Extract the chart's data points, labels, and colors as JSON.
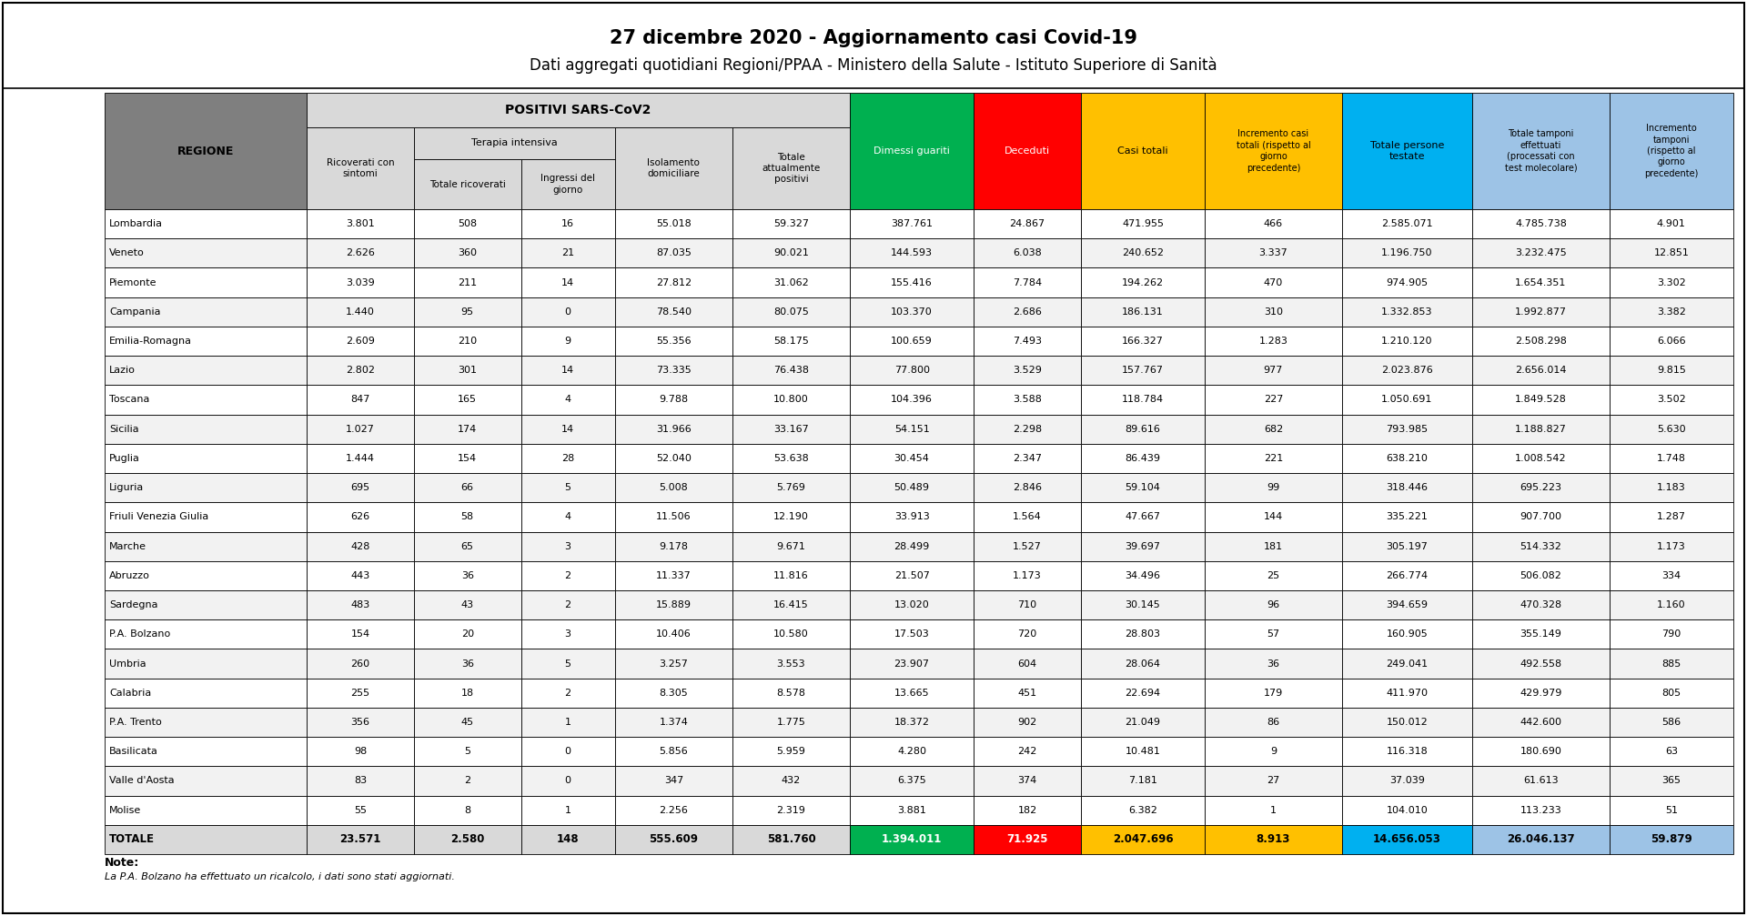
{
  "title1": "27 dicembre 2020 - Aggiornamento casi Covid-19",
  "title2": "Dati aggregati quotidiani Regioni/PPAA - Ministero della Salute - Istituto Superiore di Sanità",
  "note1": "Note:",
  "note2": "La P.A. Bolzano ha effettuato un ricalcolo, i dati sono stati aggiornati.",
  "regions": [
    "Lombardia",
    "Veneto",
    "Piemonte",
    "Campania",
    "Emilia-Romagna",
    "Lazio",
    "Toscana",
    "Sicilia",
    "Puglia",
    "Liguria",
    "Friuli Venezia Giulia",
    "Marche",
    "Abruzzo",
    "Sardegna",
    "P.A. Bolzano",
    "Umbria",
    "Calabria",
    "P.A. Trento",
    "Basilicata",
    "Valle d'Aosta",
    "Molise",
    "TOTALE"
  ],
  "col_ricoverati_sintomi": [
    "3.801",
    "2.626",
    "3.039",
    "1.440",
    "2.609",
    "2.802",
    "847",
    "1.027",
    "1.444",
    "695",
    "626",
    "428",
    "443",
    "483",
    "154",
    "260",
    "255",
    "356",
    "98",
    "83",
    "55",
    "23.571"
  ],
  "col_totale_ricoverati": [
    "508",
    "360",
    "211",
    "95",
    "210",
    "301",
    "165",
    "174",
    "154",
    "66",
    "58",
    "65",
    "36",
    "43",
    "20",
    "36",
    "18",
    "45",
    "5",
    "2",
    "8",
    "2.580"
  ],
  "col_ingressi_giorno": [
    "16",
    "21",
    "14",
    "0",
    "9",
    "14",
    "4",
    "14",
    "28",
    "5",
    "4",
    "3",
    "2",
    "2",
    "3",
    "5",
    "2",
    "1",
    "0",
    "0",
    "1",
    "148"
  ],
  "col_isolamento": [
    "55.018",
    "87.035",
    "27.812",
    "78.540",
    "55.356",
    "73.335",
    "9.788",
    "31.966",
    "52.040",
    "5.008",
    "11.506",
    "9.178",
    "11.337",
    "15.889",
    "10.406",
    "3.257",
    "8.305",
    "1.374",
    "5.856",
    "347",
    "2.256",
    "555.609"
  ],
  "col_totale_positivi": [
    "59.327",
    "90.021",
    "31.062",
    "80.075",
    "58.175",
    "76.438",
    "10.800",
    "33.167",
    "53.638",
    "5.769",
    "12.190",
    "9.671",
    "11.816",
    "16.415",
    "10.580",
    "3.553",
    "8.578",
    "1.775",
    "5.959",
    "432",
    "2.319",
    "581.760"
  ],
  "col_dimessi_guariti": [
    "387.761",
    "144.593",
    "155.416",
    "103.370",
    "100.659",
    "77.800",
    "104.396",
    "54.151",
    "30.454",
    "50.489",
    "33.913",
    "28.499",
    "21.507",
    "13.020",
    "17.503",
    "23.907",
    "13.665",
    "18.372",
    "4.280",
    "6.375",
    "3.881",
    "1.394.011"
  ],
  "col_deceduti": [
    "24.867",
    "6.038",
    "7.784",
    "2.686",
    "7.493",
    "3.529",
    "3.588",
    "2.298",
    "2.347",
    "2.846",
    "1.564",
    "1.527",
    "1.173",
    "710",
    "720",
    "604",
    "451",
    "902",
    "242",
    "374",
    "182",
    "71.925"
  ],
  "col_casi_totali": [
    "471.955",
    "240.652",
    "194.262",
    "186.131",
    "166.327",
    "157.767",
    "118.784",
    "89.616",
    "86.439",
    "59.104",
    "47.667",
    "39.697",
    "34.496",
    "30.145",
    "28.803",
    "28.064",
    "22.694",
    "21.049",
    "10.481",
    "7.181",
    "6.382",
    "2.047.696"
  ],
  "col_incremento_casi": [
    "466",
    "3.337",
    "470",
    "310",
    "1.283",
    "977",
    "227",
    "682",
    "221",
    "99",
    "144",
    "181",
    "25",
    "96",
    "57",
    "36",
    "179",
    "86",
    "9",
    "27",
    "1",
    "8.913"
  ],
  "col_totale_persone": [
    "2.585.071",
    "1.196.750",
    "974.905",
    "1.332.853",
    "1.210.120",
    "2.023.876",
    "1.050.691",
    "793.985",
    "638.210",
    "318.446",
    "335.221",
    "305.197",
    "266.774",
    "394.659",
    "160.905",
    "249.041",
    "411.970",
    "150.012",
    "116.318",
    "37.039",
    "104.010",
    "14.656.053"
  ],
  "col_tamponi": [
    "4.785.738",
    "3.232.475",
    "1.654.351",
    "1.992.877",
    "2.508.298",
    "2.656.014",
    "1.849.528",
    "1.188.827",
    "1.008.542",
    "695.223",
    "907.700",
    "514.332",
    "506.082",
    "470.328",
    "355.149",
    "492.558",
    "429.979",
    "442.600",
    "180.690",
    "61.613",
    "113.233",
    "26.046.137"
  ],
  "col_incremento_tamponi": [
    "4.901",
    "12.851",
    "3.302",
    "3.382",
    "6.066",
    "9.815",
    "3.502",
    "5.630",
    "1.748",
    "1.183",
    "1.287",
    "1.173",
    "334",
    "1.160",
    "790",
    "885",
    "805",
    "586",
    "63",
    "365",
    "51",
    "59.879"
  ],
  "color_regione_header": "#7f7f7f",
  "color_positivi_header": "#d9d9d9",
  "color_dimessi": "#00b050",
  "color_deceduti": "#ff0000",
  "color_casi": "#ffc000",
  "color_persone": "#00b0f0",
  "color_tamponi": "#9dc3e6",
  "color_white": "#ffffff",
  "color_row_even": "#ffffff",
  "color_row_odd": "#f2f2f2",
  "color_totale_row": "#d9d9d9",
  "color_border": "#000000"
}
